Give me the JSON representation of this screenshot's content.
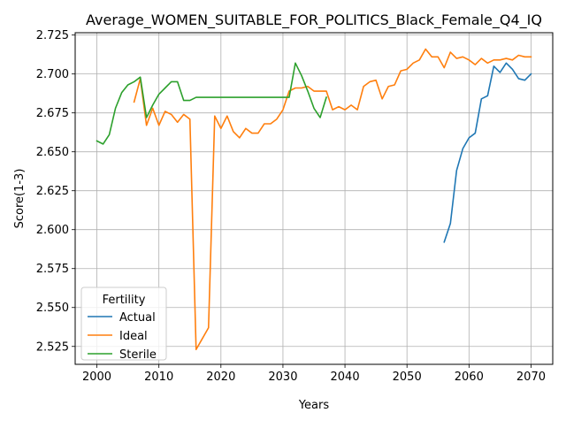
{
  "chart_data": {
    "type": "line",
    "title": "Average_WOMEN_SUITABLE_FOR_POLITICS_Black_Female_Q4_IQ",
    "xlabel": "Years",
    "ylabel": "Score(1-3)",
    "xlim": [
      1996.5,
      2073.5
    ],
    "ylim": [
      2.5135,
      2.7265
    ],
    "xticks": [
      2000,
      2010,
      2020,
      2030,
      2040,
      2050,
      2060,
      2070
    ],
    "yticks": [
      2.525,
      2.55,
      2.575,
      2.6,
      2.625,
      2.65,
      2.675,
      2.7,
      2.725
    ],
    "grid": true,
    "legend": {
      "title": "Fertility",
      "placement": "lower-left"
    },
    "series": [
      {
        "name": "Actual",
        "color": "#1f77b4",
        "x": [
          2056,
          2057,
          2058,
          2059,
          2060,
          2061,
          2062,
          2063,
          2064,
          2065,
          2066,
          2067,
          2068,
          2069,
          2070
        ],
        "y": [
          2.592,
          2.604,
          2.638,
          2.652,
          2.659,
          2.662,
          2.684,
          2.686,
          2.705,
          2.701,
          2.707,
          2.703,
          2.697,
          2.696,
          2.7
        ]
      },
      {
        "name": "Ideal",
        "color": "#ff7f0e",
        "x": [
          2006,
          2007,
          2008,
          2009,
          2010,
          2011,
          2012,
          2013,
          2014,
          2015,
          2016,
          2017,
          2018,
          2019,
          2020,
          2021,
          2022,
          2023,
          2024,
          2025,
          2026,
          2027,
          2028,
          2029,
          2030,
          2031,
          2032,
          2033,
          2034,
          2035,
          2036,
          2037,
          2038,
          2039,
          2040,
          2041,
          2042,
          2043,
          2044,
          2045,
          2046,
          2047,
          2048,
          2049,
          2050,
          2051,
          2052,
          2053,
          2054,
          2055,
          2056,
          2057,
          2058,
          2059,
          2060,
          2061,
          2062,
          2063,
          2064,
          2065,
          2066,
          2067,
          2068,
          2069,
          2070
        ],
        "y": [
          2.682,
          2.697,
          2.667,
          2.678,
          2.667,
          2.676,
          2.674,
          2.669,
          2.674,
          2.671,
          2.523,
          2.53,
          2.537,
          2.673,
          2.665,
          2.673,
          2.663,
          2.659,
          2.665,
          2.662,
          2.662,
          2.668,
          2.668,
          2.671,
          2.677,
          2.689,
          2.691,
          2.691,
          2.692,
          2.689,
          2.689,
          2.689,
          2.677,
          2.679,
          2.677,
          2.68,
          2.677,
          2.692,
          2.695,
          2.696,
          2.684,
          2.692,
          2.693,
          2.702,
          2.703,
          2.707,
          2.709,
          2.716,
          2.711,
          2.711,
          2.704,
          2.714,
          2.71,
          2.711,
          2.709,
          2.706,
          2.71,
          2.707,
          2.709,
          2.709,
          2.71,
          2.709,
          2.712,
          2.711,
          2.711
        ]
      },
      {
        "name": "Sterile",
        "color": "#2ca02c",
        "x": [
          2000,
          2001,
          2002,
          2003,
          2004,
          2005,
          2006,
          2007,
          2008,
          2009,
          2010,
          2011,
          2012,
          2013,
          2014,
          2015,
          2016,
          2017,
          2018,
          2019,
          2020,
          2021,
          2022,
          2023,
          2024,
          2025,
          2026,
          2027,
          2028,
          2029,
          2030,
          2031,
          2032,
          2033,
          2034,
          2035,
          2036,
          2037
        ],
        "y": [
          2.657,
          2.655,
          2.661,
          2.678,
          2.688,
          2.693,
          2.695,
          2.698,
          2.672,
          2.68,
          2.687,
          2.691,
          2.695,
          2.695,
          2.683,
          2.683,
          2.685,
          2.685,
          2.685,
          2.685,
          2.685,
          2.685,
          2.685,
          2.685,
          2.685,
          2.685,
          2.685,
          2.685,
          2.685,
          2.685,
          2.685,
          2.685,
          2.707,
          2.699,
          2.689,
          2.678,
          2.672,
          2.685
        ]
      }
    ]
  }
}
